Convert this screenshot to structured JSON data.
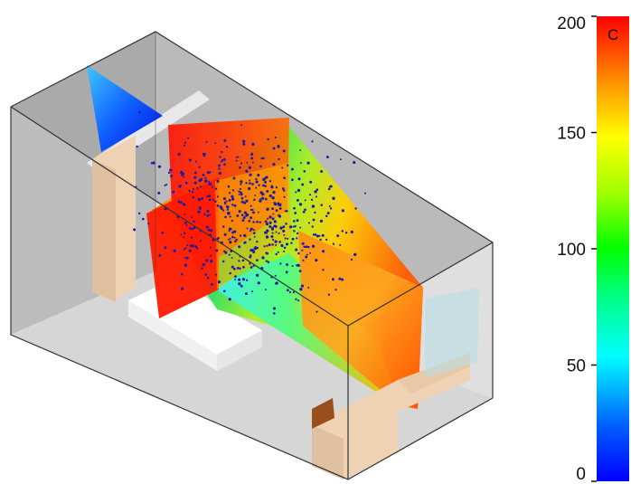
{
  "colorbar": {
    "unit": "C",
    "min": 0,
    "max": 200,
    "ticks": [
      {
        "value": 200,
        "label": "200"
      },
      {
        "value": 150,
        "label": "150"
      },
      {
        "value": 100,
        "label": "100"
      },
      {
        "value": 50,
        "label": "50"
      },
      {
        "value": 0,
        "label": "0"
      }
    ],
    "gradient_stops": [
      "#0000ff",
      "#0080ff",
      "#00ffff",
      "#00ff80",
      "#00ff00",
      "#80ff00",
      "#ffff00",
      "#ff8000",
      "#ff0000"
    ]
  },
  "scene": {
    "description_colors": {
      "wall": "#b8b8b8",
      "floor": "#d4d4d4",
      "wood": "#efd2b4",
      "wood_dark": "#9a4e1e",
      "particle": "#1a1aa8",
      "outline": "#333333"
    }
  }
}
